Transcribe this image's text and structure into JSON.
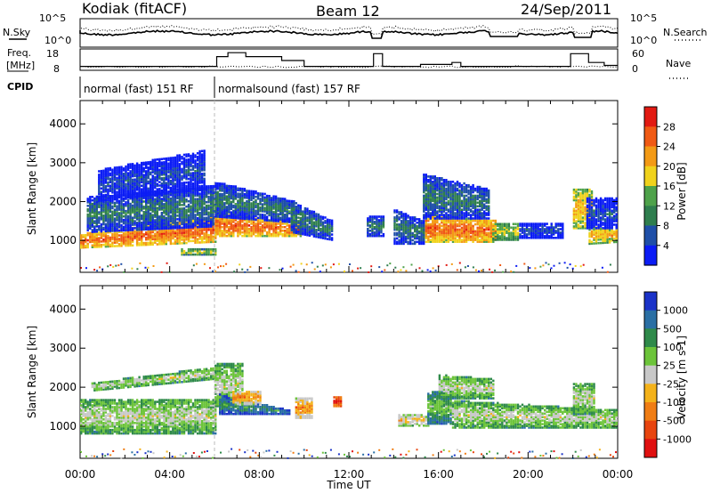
{
  "header": {
    "station": "Kodiak (fitACF)",
    "beam": "Beam 12",
    "date": "24/Sep/2011"
  },
  "status_panel": {
    "nsky_label": "N.Sky",
    "nsearch_label": "N.Search",
    "freq_label": "Freq.",
    "freq_unit": "[MHz]",
    "nave_label": "Nave",
    "cpid_label": "CPID",
    "left_ticks_top": [
      "10^5",
      "10^0"
    ],
    "right_ticks_top": [
      "10^5",
      "10^0"
    ],
    "left_ticks_freq": [
      "18",
      "8"
    ],
    "right_ticks_nave": [
      "60",
      "0"
    ],
    "cpid_programs": [
      {
        "name": "normal (fast) 151 RF",
        "start_hour": 0,
        "end_hour": 6.0
      },
      {
        "name": "normalsound (fast) 157 RF",
        "start_hour": 6.0,
        "end_hour": 24
      }
    ],
    "freq_trace": [
      [
        0,
        10
      ],
      [
        6.1,
        10
      ],
      [
        6.1,
        15
      ],
      [
        6.6,
        15
      ],
      [
        6.6,
        17
      ],
      [
        7.4,
        17
      ],
      [
        7.4,
        15
      ],
      [
        9.0,
        15
      ],
      [
        9.0,
        13
      ],
      [
        10.0,
        13
      ],
      [
        10.0,
        10
      ],
      [
        13.1,
        10
      ],
      [
        13.1,
        16.5
      ],
      [
        13.5,
        16.5
      ],
      [
        13.5,
        10
      ],
      [
        15.2,
        10
      ],
      [
        15.2,
        11
      ],
      [
        16.6,
        11
      ],
      [
        16.6,
        12
      ],
      [
        17.0,
        12
      ],
      [
        17.0,
        10
      ],
      [
        21.9,
        10
      ],
      [
        21.9,
        16.5
      ],
      [
        22.7,
        16.5
      ],
      [
        22.7,
        12
      ],
      [
        23.4,
        12
      ],
      [
        23.4,
        10.5
      ],
      [
        24,
        10.5
      ]
    ]
  },
  "chart_data": [
    {
      "type": "heatmap",
      "name": "power",
      "ylabel": "Slant Range [km]",
      "xlabel": "",
      "y_ticks": [
        "1000",
        "2000",
        "3000",
        "4000"
      ],
      "ylim": [
        180,
        4600
      ],
      "xlim": [
        0,
        24
      ],
      "colorbar_label": "Power [dB]",
      "colorbar_ticks": [
        "4",
        "8",
        "12",
        "16",
        "20",
        "24",
        "28"
      ],
      "colorbar_colors": [
        "#0b1cf5",
        "#1f4fa8",
        "#2f7e4e",
        "#4ea24a",
        "#f0d21c",
        "#f39a15",
        "#f05a14",
        "#e21a12"
      ],
      "bands": [
        {
          "start": 0.0,
          "end": 6.0,
          "lo_start": 800,
          "lo_end": 950,
          "hi_start": 1150,
          "hi_end": 1600,
          "level": 6
        },
        {
          "start": 0.3,
          "end": 6.0,
          "lo_start": 1200,
          "lo_end": 1350,
          "hi_start": 2100,
          "hi_end": 2400,
          "level": 2
        },
        {
          "start": 0.8,
          "end": 5.5,
          "lo_start": 2000,
          "lo_end": 2300,
          "hi_start": 2800,
          "hi_end": 3300,
          "level": 1
        },
        {
          "start": 6.0,
          "end": 9.8,
          "lo_start": 1100,
          "lo_end": 1100,
          "hi_start": 1700,
          "hi_end": 1450,
          "level": 6
        },
        {
          "start": 6.0,
          "end": 9.5,
          "lo_start": 1600,
          "lo_end": 1450,
          "hi_start": 2500,
          "hi_end": 2000,
          "level": 2
        },
        {
          "start": 4.5,
          "end": 6.0,
          "lo_start": 620,
          "lo_end": 620,
          "hi_start": 760,
          "hi_end": 760,
          "level": 4
        },
        {
          "start": 9.4,
          "end": 11.2,
          "lo_start": 1200,
          "lo_end": 1000,
          "hi_start": 2000,
          "hi_end": 1500,
          "level": 2
        },
        {
          "start": 12.8,
          "end": 13.5,
          "lo_start": 1100,
          "lo_end": 1100,
          "hi_start": 1600,
          "hi_end": 1600,
          "level": 2
        },
        {
          "start": 14.0,
          "end": 15.3,
          "lo_start": 900,
          "lo_end": 900,
          "hi_start": 1800,
          "hi_end": 1500,
          "level": 2
        },
        {
          "start": 15.4,
          "end": 18.6,
          "lo_start": 950,
          "lo_end": 950,
          "hi_start": 1650,
          "hi_end": 1500,
          "level": 6
        },
        {
          "start": 15.3,
          "end": 18.3,
          "lo_start": 1550,
          "lo_end": 1550,
          "hi_start": 2700,
          "hi_end": 2300,
          "level": 2
        },
        {
          "start": 18.4,
          "end": 19.6,
          "lo_start": 1000,
          "lo_end": 1000,
          "hi_start": 1450,
          "hi_end": 1450,
          "level": 4
        },
        {
          "start": 19.6,
          "end": 21.6,
          "lo_start": 1050,
          "lo_end": 1050,
          "hi_start": 1450,
          "hi_end": 1450,
          "level": 1
        },
        {
          "start": 22.0,
          "end": 22.9,
          "lo_start": 1300,
          "lo_end": 1300,
          "hi_start": 2300,
          "hi_end": 2300,
          "level": 5
        },
        {
          "start": 22.7,
          "end": 24.0,
          "lo_start": 900,
          "lo_end": 950,
          "hi_start": 1350,
          "hi_end": 1300,
          "level": 5
        },
        {
          "start": 22.6,
          "end": 24.0,
          "lo_start": 1300,
          "lo_end": 1300,
          "hi_start": 2100,
          "hi_end": 2100,
          "level": 1
        }
      ]
    },
    {
      "type": "heatmap",
      "name": "velocity",
      "ylabel": "Slant Range [km]",
      "xlabel": "Time UT",
      "x_ticks": [
        "00:00",
        "04:00",
        "08:00",
        "12:00",
        "16:00",
        "20:00",
        "00:00"
      ],
      "y_ticks": [
        "1000",
        "2000",
        "3000",
        "4000"
      ],
      "ylim": [
        180,
        4600
      ],
      "xlim": [
        0,
        24
      ],
      "colorbar_label": "Velocity [m s-1]",
      "colorbar_ticks": [
        "1000",
        "500",
        "100",
        "25",
        "-25",
        "-100",
        "-500",
        "-1000"
      ],
      "colorbar_colors": [
        "#1a32c8",
        "#2a6fa4",
        "#2f8a4a",
        "#6cc43a",
        "#c8c8c8",
        "#f4b21a",
        "#f07d14",
        "#e8450f",
        "#e01010"
      ],
      "bands": [
        {
          "start": 0.0,
          "end": 6.0,
          "lo_start": 800,
          "lo_end": 800,
          "hi_start": 1700,
          "hi_end": 1700,
          "level": 4
        },
        {
          "start": 0.5,
          "end": 6.0,
          "lo_start": 1900,
          "lo_end": 2200,
          "hi_start": 2100,
          "hi_end": 2500,
          "level": 4
        },
        {
          "start": 6.0,
          "end": 7.2,
          "lo_start": 1500,
          "lo_end": 1500,
          "hi_start": 2600,
          "hi_end": 2600,
          "level": 4
        },
        {
          "start": 6.2,
          "end": 9.3,
          "lo_start": 1300,
          "lo_end": 1300,
          "hi_start": 1800,
          "hi_end": 1400,
          "level": 2
        },
        {
          "start": 6.8,
          "end": 8.0,
          "lo_start": 1550,
          "lo_end": 1550,
          "hi_start": 1900,
          "hi_end": 1900,
          "level": 6
        },
        {
          "start": 9.6,
          "end": 10.3,
          "lo_start": 1200,
          "lo_end": 1200,
          "hi_start": 1700,
          "hi_end": 1700,
          "level": 6
        },
        {
          "start": 11.3,
          "end": 11.7,
          "lo_start": 1500,
          "lo_end": 1500,
          "hi_start": 1750,
          "hi_end": 1750,
          "level": 8
        },
        {
          "start": 14.2,
          "end": 15.5,
          "lo_start": 1000,
          "lo_end": 1000,
          "hi_start": 1300,
          "hi_end": 1300,
          "level": 5
        },
        {
          "start": 15.5,
          "end": 16.6,
          "lo_start": 1050,
          "lo_end": 1050,
          "hi_start": 1900,
          "hi_end": 1900,
          "level": 3
        },
        {
          "start": 16.6,
          "end": 24.0,
          "lo_start": 950,
          "lo_end": 950,
          "hi_start": 1650,
          "hi_end": 1400,
          "level": 4
        },
        {
          "start": 16.0,
          "end": 18.5,
          "lo_start": 1700,
          "lo_end": 1700,
          "hi_start": 2300,
          "hi_end": 2200,
          "level": 4
        },
        {
          "start": 22.0,
          "end": 23.0,
          "lo_start": 1300,
          "lo_end": 1300,
          "hi_start": 2100,
          "hi_end": 2100,
          "level": 4
        }
      ]
    }
  ]
}
